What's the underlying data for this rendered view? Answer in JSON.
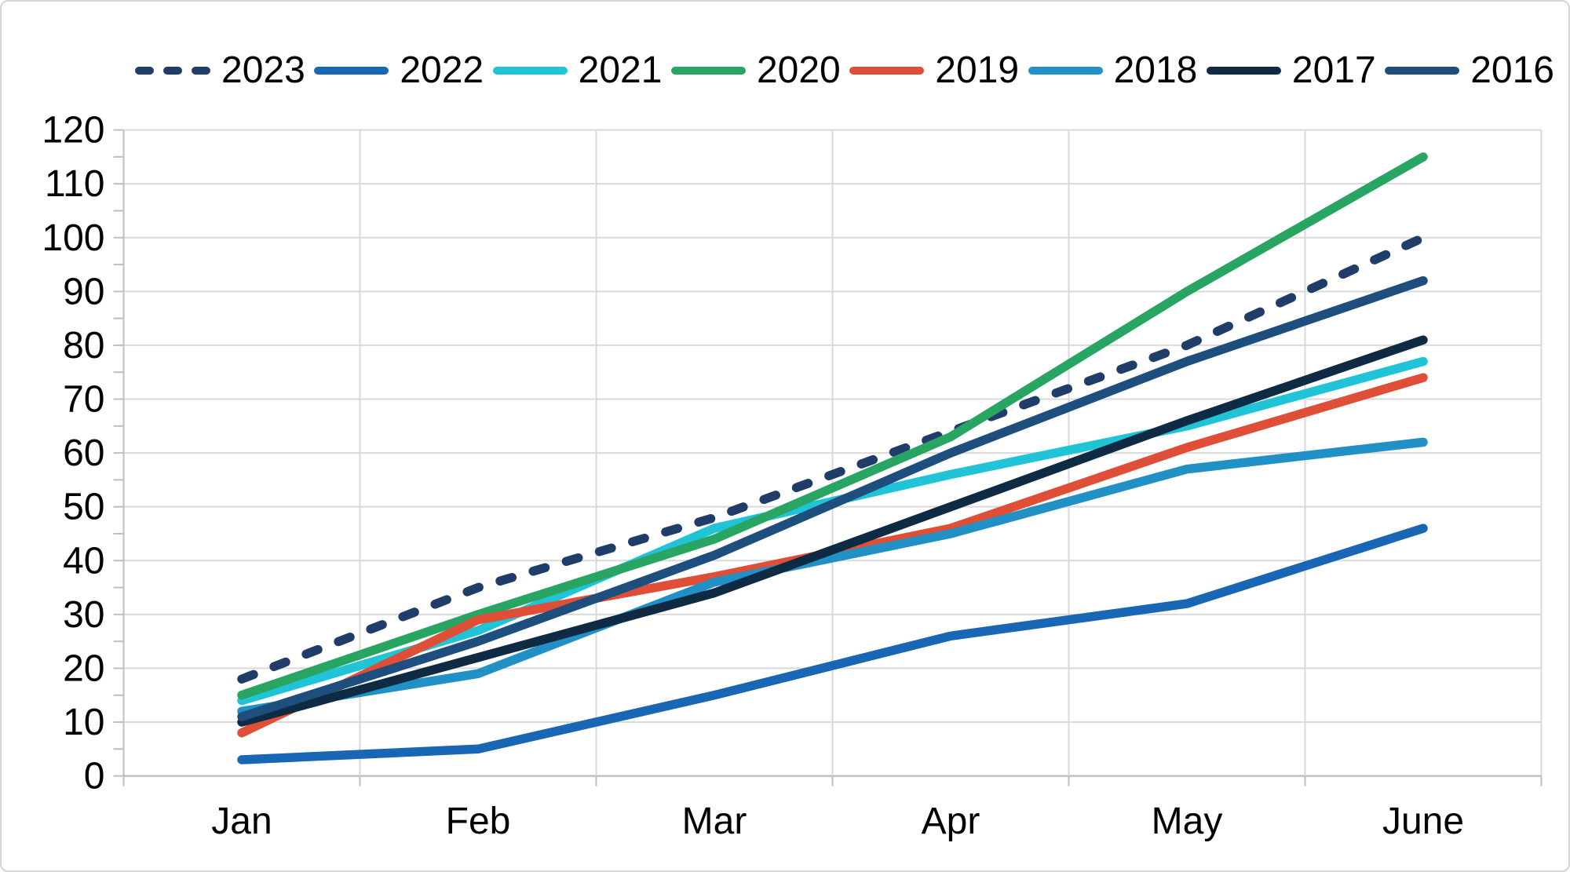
{
  "chart_data": {
    "type": "line",
    "title": "",
    "xlabel": "",
    "ylabel": "",
    "categories": [
      "Jan",
      "Feb",
      "Mar",
      "Apr",
      "May",
      "June"
    ],
    "series": [
      {
        "name": "2023",
        "values": [
          18,
          35,
          48,
          64,
          80,
          100
        ],
        "color": "#1F3D68",
        "dashed": true
      },
      {
        "name": "2022",
        "values": [
          3,
          5,
          15,
          26,
          32,
          46
        ],
        "color": "#1966B5",
        "dashed": false
      },
      {
        "name": "2021",
        "values": [
          14,
          27,
          46,
          56,
          65,
          77
        ],
        "color": "#20C4D6",
        "dashed": false
      },
      {
        "name": "2020",
        "values": [
          15,
          30,
          44,
          63,
          90,
          115
        ],
        "color": "#28A563",
        "dashed": false
      },
      {
        "name": "2019",
        "values": [
          8,
          29,
          37,
          46,
          61,
          74
        ],
        "color": "#DF4E37",
        "dashed": false
      },
      {
        "name": "2018",
        "values": [
          12,
          19,
          36,
          45,
          57,
          62
        ],
        "color": "#2090C5",
        "dashed": false
      },
      {
        "name": "2017",
        "values": [
          10,
          22,
          34,
          50,
          66,
          81
        ],
        "color": "#0F2B44",
        "dashed": false
      },
      {
        "name": "2016",
        "values": [
          11,
          25,
          41,
          60,
          77,
          92
        ],
        "color": "#1D4E7E",
        "dashed": false
      }
    ],
    "ylim": [
      0,
      120
    ],
    "ytick_step": 10,
    "yminor_step": 5,
    "y_tick_labels": [
      "0",
      "10",
      "20",
      "30",
      "40",
      "50",
      "60",
      "70",
      "80",
      "90",
      "100",
      "110",
      "120"
    ],
    "legend_position": "top",
    "grid": true,
    "colors": {
      "gridline": "#D9D9D9",
      "axis": "#BFBFBF",
      "text": "#000000",
      "background": "#FFFFFF"
    }
  }
}
